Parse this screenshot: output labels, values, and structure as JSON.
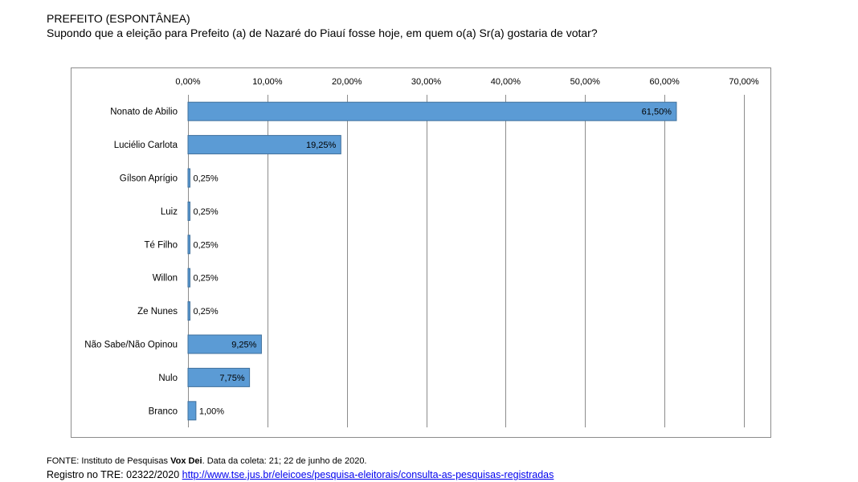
{
  "header": {
    "title": "PREFEITO (ESPONTÂNEA)",
    "question": "Supondo que a eleição para Prefeito (a) de Nazaré do Piauí fosse hoje, em quem o(a) Sr(a) gostaria de votar?"
  },
  "chart_data": {
    "type": "bar",
    "orientation": "horizontal",
    "categories": [
      "Nonato de Abilio",
      "Luciélio Carlota",
      "Gílson Aprígio",
      "Luiz",
      "Té Filho",
      "Willon",
      "Ze Nunes",
      "Não Sabe/Não Opinou",
      "Nulo",
      "Branco"
    ],
    "values": [
      61.5,
      19.25,
      0.25,
      0.25,
      0.25,
      0.25,
      0.25,
      9.25,
      7.75,
      1.0
    ],
    "value_labels": [
      "61,50%",
      "19,25%",
      "0,25%",
      "0,25%",
      "0,25%",
      "0,25%",
      "0,25%",
      "9,25%",
      "7,75%",
      "1,00%"
    ],
    "xlim": [
      0,
      70
    ],
    "x_ticks": [
      0,
      10,
      20,
      30,
      40,
      50,
      60,
      70
    ],
    "x_tick_labels": [
      "0,00%",
      "10,00%",
      "20,00%",
      "30,00%",
      "40,00%",
      "50,00%",
      "60,00%",
      "70,00%"
    ],
    "x_axis_position": "top",
    "grid": true,
    "legend": "none",
    "bar_color": "#5b9bd5",
    "bar_edge_color": "#41719c",
    "grid_color": "#8c8c8c"
  },
  "footer": {
    "source_prefix": "FONTE: Instituto de Pesquisas ",
    "source_bold": "Vox Dei",
    "source_suffix": ". Data da coleta: 21; 22 de junho de 2020.",
    "registry_prefix": "Registro no TRE: 02322/2020 ",
    "registry_link": "http://www.tse.jus.br/eleicoes/pesquisa-eleitorais/consulta-as-pesquisas-registradas"
  }
}
